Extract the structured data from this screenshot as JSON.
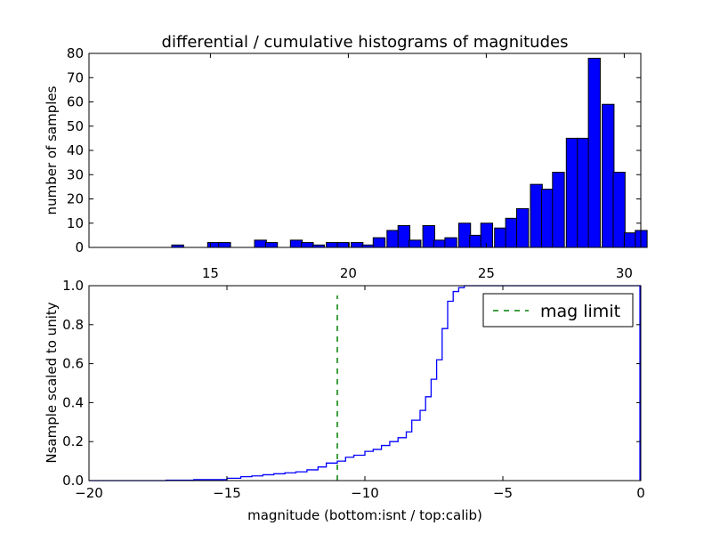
{
  "chart_data": [
    {
      "type": "bar",
      "title": "differential / cumulative histograms of magnitudes",
      "xlabel": "",
      "ylabel": "number of samples",
      "xlim": [
        10.6,
        30.6
      ],
      "ylim": [
        0,
        80
      ],
      "xticks": [
        15,
        20,
        25,
        30
      ],
      "yticks": [
        0,
        10,
        20,
        30,
        40,
        50,
        60,
        70,
        80
      ],
      "xtick_position": "top-axis labels shown below plot",
      "bar_color": "#0000ff",
      "bin_width": 0.43,
      "bins": [
        {
          "x": 13.6,
          "value": 1
        },
        {
          "x": 14.9,
          "value": 2
        },
        {
          "x": 15.3,
          "value": 2
        },
        {
          "x": 16.6,
          "value": 3
        },
        {
          "x": 17.0,
          "value": 2
        },
        {
          "x": 17.9,
          "value": 3
        },
        {
          "x": 18.3,
          "value": 2
        },
        {
          "x": 18.7,
          "value": 1
        },
        {
          "x": 19.2,
          "value": 2
        },
        {
          "x": 19.6,
          "value": 2
        },
        {
          "x": 20.1,
          "value": 2
        },
        {
          "x": 20.5,
          "value": 1
        },
        {
          "x": 20.9,
          "value": 4
        },
        {
          "x": 21.4,
          "value": 7
        },
        {
          "x": 21.8,
          "value": 9
        },
        {
          "x": 22.2,
          "value": 3
        },
        {
          "x": 22.7,
          "value": 9
        },
        {
          "x": 23.1,
          "value": 3
        },
        {
          "x": 23.5,
          "value": 4
        },
        {
          "x": 24.0,
          "value": 10
        },
        {
          "x": 24.4,
          "value": 5
        },
        {
          "x": 24.8,
          "value": 10
        },
        {
          "x": 25.3,
          "value": 8
        },
        {
          "x": 25.7,
          "value": 12
        },
        {
          "x": 26.1,
          "value": 16
        },
        {
          "x": 26.6,
          "value": 26
        },
        {
          "x": 27.0,
          "value": 24
        },
        {
          "x": 27.4,
          "value": 31
        },
        {
          "x": 27.9,
          "value": 45
        },
        {
          "x": 28.3,
          "value": 45
        },
        {
          "x": 28.7,
          "value": 78
        },
        {
          "x": 29.2,
          "value": 59
        },
        {
          "x": 29.6,
          "value": 31
        },
        {
          "x": 30.0,
          "value": 6
        },
        {
          "x": 30.4,
          "value": 7
        }
      ]
    },
    {
      "type": "line",
      "title": "",
      "xlabel": "magnitude (bottom:isnt / top:calib)",
      "ylabel": "Nsample scaled to unity",
      "xlim": [
        -20,
        0
      ],
      "ylim": [
        0.0,
        1.0
      ],
      "xticks": [
        -20,
        -15,
        -10,
        -5,
        0
      ],
      "yticks": [
        0.0,
        0.2,
        0.4,
        0.6,
        0.8,
        1.0
      ],
      "legend": {
        "position": "top-right",
        "entries": [
          {
            "label": "mag limit",
            "style": "dashed",
            "color": "#008000"
          }
        ]
      },
      "series": [
        {
          "style": "step",
          "color": "#0000ff",
          "x": [
            -20,
            -17.2,
            -16.2,
            -15.0,
            -14.5,
            -14.1,
            -13.7,
            -13.3,
            -12.9,
            -12.5,
            -12.1,
            -11.7,
            -11.4,
            -11.0,
            -10.7,
            -10.4,
            -10.0,
            -9.7,
            -9.4,
            -9.1,
            -8.8,
            -8.5,
            -8.3,
            -8.0,
            -7.8,
            -7.6,
            -7.4,
            -7.2,
            -7.0,
            -6.8,
            -6.6,
            -6.4,
            0
          ],
          "y": [
            0.0,
            0.002,
            0.005,
            0.012,
            0.02,
            0.024,
            0.03,
            0.035,
            0.04,
            0.045,
            0.055,
            0.07,
            0.09,
            0.1,
            0.12,
            0.13,
            0.15,
            0.16,
            0.18,
            0.2,
            0.22,
            0.25,
            0.31,
            0.36,
            0.43,
            0.52,
            0.62,
            0.78,
            0.92,
            0.97,
            0.99,
            1.0,
            1.0
          ]
        },
        {
          "name": "mag limit",
          "style": "dashed",
          "color": "#008000",
          "x": [
            -11.0,
            -11.0
          ],
          "y": [
            0.0,
            0.95
          ]
        }
      ]
    }
  ]
}
